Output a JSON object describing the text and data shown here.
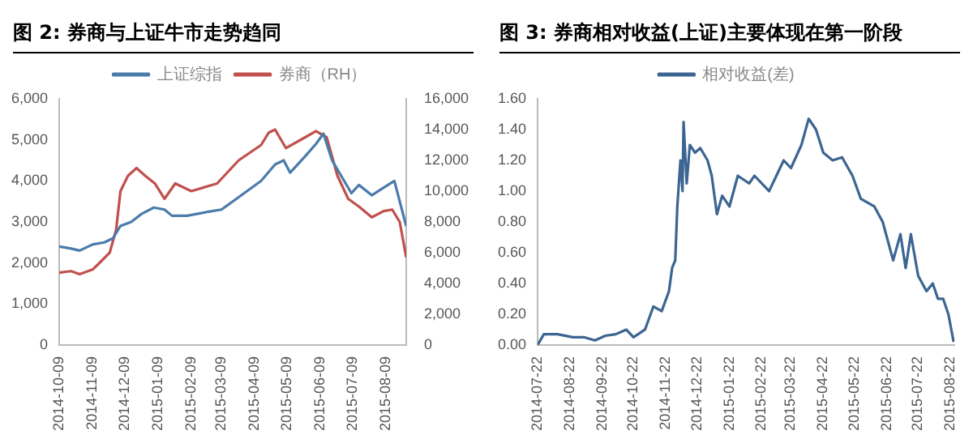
{
  "chart_data": [
    {
      "type": "line",
      "title": "图 2: 券商与上证牛市走势趋同",
      "legend": "top",
      "grid": false,
      "xlim": [
        "2014-10-09",
        "2015-08-28"
      ],
      "xticks": [
        "2014-10-09",
        "2014-11-09",
        "2014-12-09",
        "2015-01-09",
        "2015-02-09",
        "2015-03-09",
        "2015-04-09",
        "2015-05-09",
        "2015-06-09",
        "2015-07-09",
        "2015-08-09"
      ],
      "ylim": [
        0,
        6000
      ],
      "yticks": [
        0,
        {
          "value": 1000,
          "label": "1,000"
        },
        {
          "value": 2000,
          "label": "2,000"
        },
        {
          "value": 3000,
          "label": "3,000"
        },
        {
          "value": 4000,
          "label": "4,000"
        },
        {
          "value": 5000,
          "label": "5,000"
        },
        {
          "value": 6000,
          "label": "6,000"
        }
      ],
      "y2lim": [
        0,
        16000
      ],
      "y2ticks": [
        0,
        {
          "value": 2000,
          "label": "2,000"
        },
        {
          "value": 4000,
          "label": "4,000"
        },
        {
          "value": 6000,
          "label": "6,000"
        },
        {
          "value": 8000,
          "label": "8,000"
        },
        {
          "value": 10000,
          "label": "10,000"
        },
        {
          "value": 12000,
          "label": "12,000"
        },
        {
          "value": 14000,
          "label": "14,000"
        },
        {
          "value": 16000,
          "label": "16,000"
        }
      ],
      "series": [
        {
          "name": "上证综指",
          "color": "#4a7bab",
          "x": [
            "2014-10-09",
            "2014-10-20",
            "2014-10-28",
            "2014-11-09",
            "2014-11-20",
            "2014-11-28",
            "2014-12-05",
            "2014-12-15",
            "2014-12-25",
            "2015-01-05",
            "2015-01-15",
            "2015-01-22",
            "2015-02-05",
            "2015-02-25",
            "2015-03-09",
            "2015-03-25",
            "2015-04-15",
            "2015-04-28",
            "2015-05-06",
            "2015-05-12",
            "2015-05-26",
            "2015-06-05",
            "2015-06-12",
            "2015-06-20",
            "2015-06-29",
            "2015-07-08",
            "2015-07-15",
            "2015-07-27",
            "2015-08-05",
            "2015-08-17",
            "2015-08-22",
            "2015-08-28"
          ],
          "values": [
            2400,
            2350,
            2300,
            2450,
            2500,
            2600,
            2900,
            3000,
            3200,
            3350,
            3300,
            3150,
            3150,
            3250,
            3300,
            3600,
            4000,
            4400,
            4500,
            4200,
            4600,
            4900,
            5150,
            4500,
            4100,
            3700,
            3900,
            3650,
            3800,
            4000,
            3500,
            2900
          ]
        },
        {
          "name": "券商（RH）",
          "axis": "y2",
          "color": "#c0504d",
          "x": [
            "2014-10-09",
            "2014-10-20",
            "2014-10-28",
            "2014-11-09",
            "2014-11-15",
            "2014-11-25",
            "2014-12-01",
            "2014-12-05",
            "2014-12-12",
            "2014-12-20",
            "2014-12-28",
            "2015-01-06",
            "2015-01-15",
            "2015-01-25",
            "2015-02-09",
            "2015-03-05",
            "2015-03-25",
            "2015-04-15",
            "2015-04-22",
            "2015-04-28",
            "2015-05-08",
            "2015-05-26",
            "2015-06-05",
            "2015-06-15",
            "2015-06-25",
            "2015-07-05",
            "2015-07-15",
            "2015-07-27",
            "2015-08-07",
            "2015-08-15",
            "2015-08-22",
            "2015-08-28"
          ],
          "values": [
            4700,
            4800,
            4600,
            4900,
            5300,
            6000,
            7500,
            10000,
            11000,
            11500,
            11000,
            10500,
            9500,
            10500,
            10000,
            10500,
            12000,
            13000,
            13800,
            14000,
            12800,
            13500,
            13900,
            13500,
            11000,
            9500,
            9000,
            8300,
            8700,
            8800,
            8000,
            5700
          ]
        }
      ]
    },
    {
      "type": "line",
      "title": "图 3: 券商相对收益(上证)主要体现在第一阶段",
      "legend": "top",
      "grid": false,
      "xlim": [
        "2014-07-22",
        "2015-08-26"
      ],
      "xticks": [
        "2014-07-22",
        "2014-08-22",
        "2014-09-22",
        "2014-10-22",
        "2014-11-22",
        "2014-12-22",
        "2015-01-22",
        "2015-02-22",
        "2015-03-22",
        "2015-04-22",
        "2015-05-22",
        "2015-06-22",
        "2015-07-22",
        "2015-08-22"
      ],
      "ylim": [
        0,
        1.6
      ],
      "yticks": [
        {
          "value": 0,
          "label": "0.00"
        },
        {
          "value": 0.2,
          "label": "0.20"
        },
        {
          "value": 0.4,
          "label": "0.40"
        },
        {
          "value": 0.6,
          "label": "0.60"
        },
        {
          "value": 0.8,
          "label": "0.80"
        },
        {
          "value": 1,
          "label": "1.00"
        },
        {
          "value": 1.2,
          "label": "1.20"
        },
        {
          "value": 1.4,
          "label": "1.40"
        },
        {
          "value": 1.6,
          "label": "1.60"
        }
      ],
      "series": [
        {
          "name": "相对收益(差)",
          "color": "#3c6592",
          "x": [
            "2014-07-22",
            "2014-07-28",
            "2014-08-10",
            "2014-08-25",
            "2014-09-05",
            "2014-09-15",
            "2014-09-25",
            "2014-10-05",
            "2014-10-15",
            "2014-10-22",
            "2014-11-02",
            "2014-11-10",
            "2014-11-18",
            "2014-11-25",
            "2014-11-28",
            "2014-12-01",
            "2014-12-03",
            "2014-12-06",
            "2014-12-08",
            "2014-12-09",
            "2014-12-12",
            "2014-12-15",
            "2014-12-20",
            "2014-12-25",
            "2015-01-01",
            "2015-01-05",
            "2015-01-10",
            "2015-01-15",
            "2015-01-22",
            "2015-01-30",
            "2015-02-10",
            "2015-02-15",
            "2015-03-01",
            "2015-03-15",
            "2015-03-22",
            "2015-04-01",
            "2015-04-08",
            "2015-04-15",
            "2015-04-22",
            "2015-05-01",
            "2015-05-10",
            "2015-05-20",
            "2015-05-28",
            "2015-06-10",
            "2015-06-18",
            "2015-06-28",
            "2015-07-05",
            "2015-07-10",
            "2015-07-15",
            "2015-07-22",
            "2015-07-30",
            "2015-08-05",
            "2015-08-10",
            "2015-08-15",
            "2015-08-20",
            "2015-08-25"
          ],
          "values": [
            0,
            0.07,
            0.07,
            0.05,
            0.05,
            0.03,
            0.06,
            0.07,
            0.1,
            0.05,
            0.1,
            0.25,
            0.22,
            0.35,
            0.5,
            0.55,
            0.9,
            1.2,
            1,
            1.45,
            1.05,
            1.3,
            1.25,
            1.28,
            1.2,
            1.1,
            0.85,
            0.97,
            0.9,
            1.1,
            1.05,
            1.1,
            1,
            1.2,
            1.15,
            1.3,
            1.47,
            1.4,
            1.25,
            1.2,
            1.22,
            1.1,
            0.95,
            0.9,
            0.8,
            0.55,
            0.72,
            0.5,
            0.72,
            0.45,
            0.35,
            0.4,
            0.3,
            0.3,
            0.2,
            0.02
          ]
        }
      ]
    }
  ]
}
